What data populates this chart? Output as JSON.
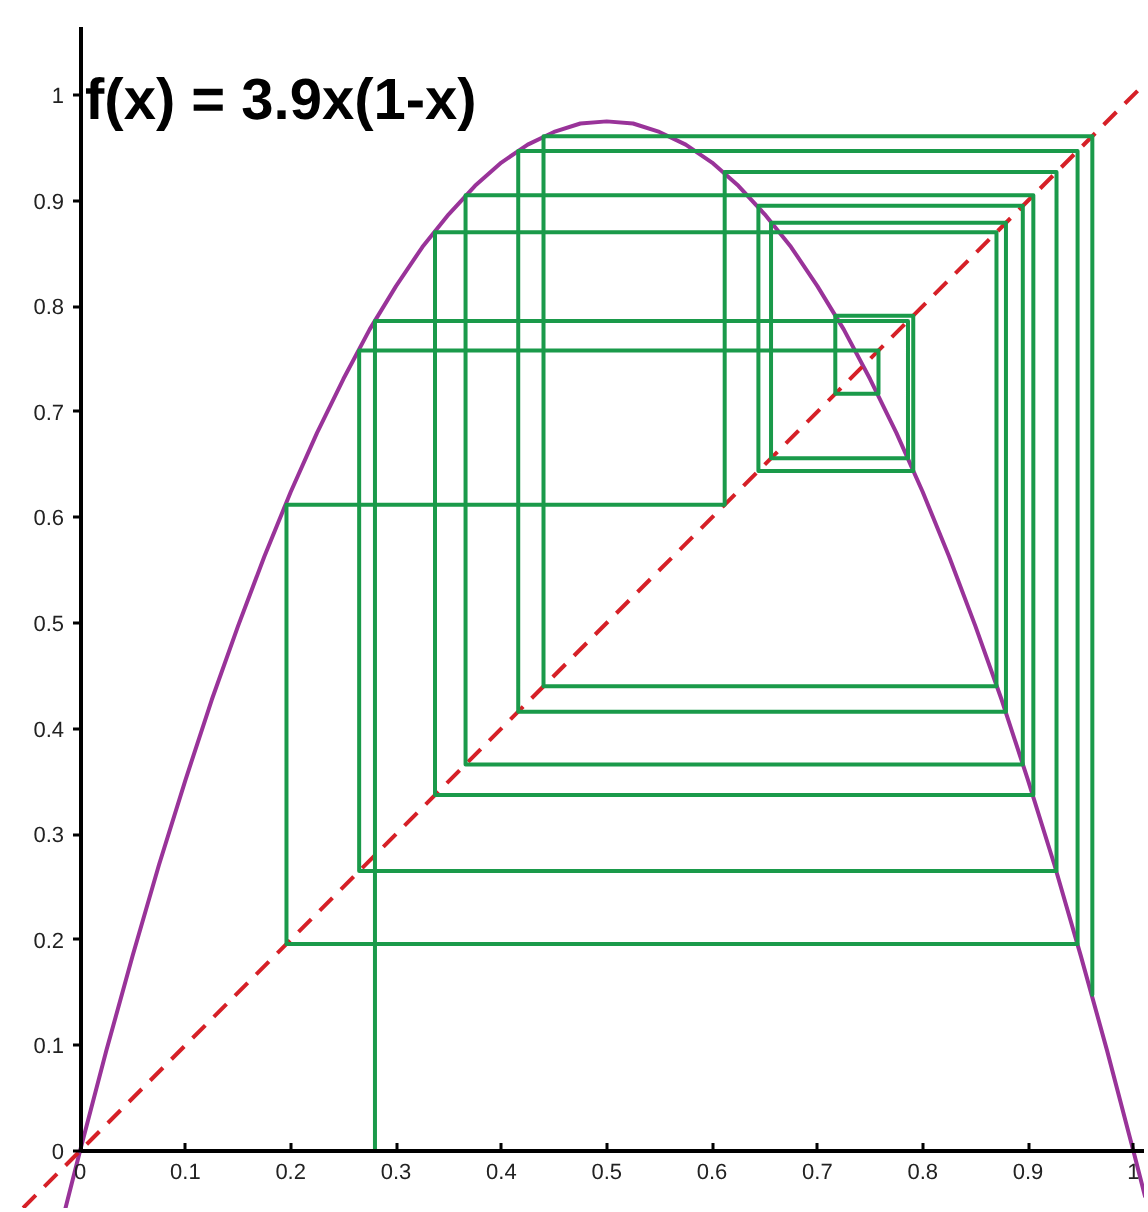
{
  "chart_data": {
    "type": "line",
    "title": "f(x) = 3.9x(1-x)",
    "xlim": [
      -0.075,
      1.011
    ],
    "ylim": [
      -0.055,
      1.089
    ],
    "xticks": [
      0,
      0.1,
      0.2,
      0.3,
      0.4,
      0.5,
      0.6,
      0.7,
      0.8,
      0.9,
      1
    ],
    "yticks": [
      0,
      0.1,
      0.2,
      0.3,
      0.4,
      0.5,
      0.6,
      0.7,
      0.8,
      0.9,
      1
    ],
    "grid": false,
    "series": [
      {
        "color": "#993399",
        "line_style": "solid",
        "x": [
          -0.014,
          0,
          0.025,
          0.05,
          0.075,
          0.1,
          0.125,
          0.15,
          0.175,
          0.2,
          0.225,
          0.25,
          0.275,
          0.3,
          0.325,
          0.35,
          0.375,
          0.4,
          0.425,
          0.45,
          0.475,
          0.5,
          0.525,
          0.55,
          0.575,
          0.6,
          0.625,
          0.65,
          0.675,
          0.7,
          0.725,
          0.75,
          0.775,
          0.8,
          0.825,
          0.85,
          0.875,
          0.9,
          0.925,
          0.95,
          0.975,
          1,
          1.011
        ],
        "values": [
          -0.055,
          0,
          0.095,
          0.185,
          0.271,
          0.351,
          0.427,
          0.497,
          0.563,
          0.624,
          0.68,
          0.731,
          0.778,
          0.819,
          0.856,
          0.887,
          0.914,
          0.936,
          0.953,
          0.965,
          0.973,
          0.975,
          0.973,
          0.965,
          0.953,
          0.936,
          0.914,
          0.887,
          0.856,
          0.819,
          0.778,
          0.731,
          0.68,
          0.624,
          0.563,
          0.497,
          0.427,
          0.351,
          0.271,
          0.185,
          0.095,
          0,
          -0.043
        ]
      },
      {
        "color": "#d62027",
        "line_style": "dashed",
        "x": [
          -0.054,
          1.011
        ],
        "values": [
          -0.054,
          1.011
        ]
      },
      {
        "color": "#1a9a4a",
        "line_style": "solid",
        "x": [
          0.28,
          0.28,
          0.786,
          0.786,
          0.656,
          0.656,
          0.879,
          0.879,
          0.416,
          0.416,
          0.947,
          0.947,
          0.196,
          0.196,
          0.612,
          0.612,
          0.927,
          0.927,
          0.265,
          0.265,
          0.758,
          0.758,
          0.717,
          0.717,
          0.791,
          0.791,
          0.644,
          0.644,
          0.895,
          0.895,
          0.366,
          0.366,
          0.905,
          0.905,
          0.337,
          0.337,
          0.87,
          0.87,
          0.44,
          0.44,
          0.961,
          0.961
        ],
        "values": [
          0,
          0.786,
          0.786,
          0.656,
          0.656,
          0.879,
          0.879,
          0.416,
          0.416,
          0.947,
          0.947,
          0.196,
          0.196,
          0.612,
          0.612,
          0.927,
          0.927,
          0.265,
          0.265,
          0.758,
          0.758,
          0.717,
          0.717,
          0.791,
          0.791,
          0.644,
          0.644,
          0.895,
          0.895,
          0.366,
          0.366,
          0.905,
          0.905,
          0.337,
          0.337,
          0.87,
          0.87,
          0.44,
          0.44,
          0.961,
          0.961,
          0.148
        ]
      }
    ]
  }
}
